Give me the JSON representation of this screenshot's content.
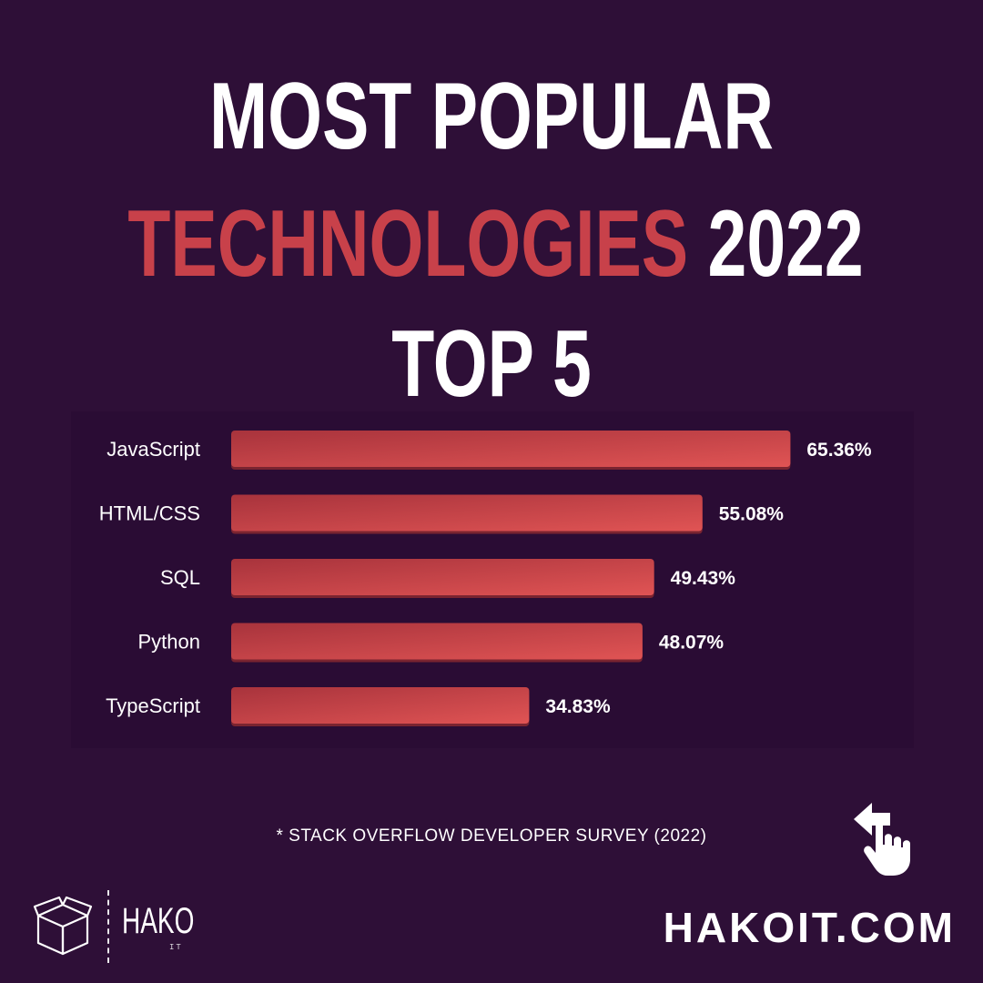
{
  "title": {
    "line1": "MOST POPULAR",
    "line2_accent": "TECHNOLOGIES",
    "line2_rest": "2022",
    "line3": "TOP 5"
  },
  "chart_data": {
    "type": "bar",
    "orientation": "horizontal",
    "categories": [
      "JavaScript",
      "HTML/CSS",
      "SQL",
      "Python",
      "TypeScript"
    ],
    "values": [
      65.36,
      55.08,
      49.43,
      48.07,
      34.83
    ],
    "value_labels": [
      "65.36%",
      "55.08%",
      "49.43%",
      "48.07%",
      "34.83%"
    ],
    "unit": "%",
    "xlim": [
      0,
      100
    ],
    "grid": false,
    "legend": "none"
  },
  "source_note": "* STACK OVERFLOW DEVELOPER SURVEY (2022)",
  "logo": {
    "word": "HAKO",
    "sub": "IT"
  },
  "site_url": "HAKOIT.COM",
  "icons": {
    "swipe": "swipe-left-hand-icon",
    "logo_box": "box-icon"
  },
  "colors": {
    "background": "#2e0f37",
    "accent": "#c8414a",
    "bar_start": "#a8333c",
    "bar_end": "#e05454",
    "text": "#ffffff"
  }
}
